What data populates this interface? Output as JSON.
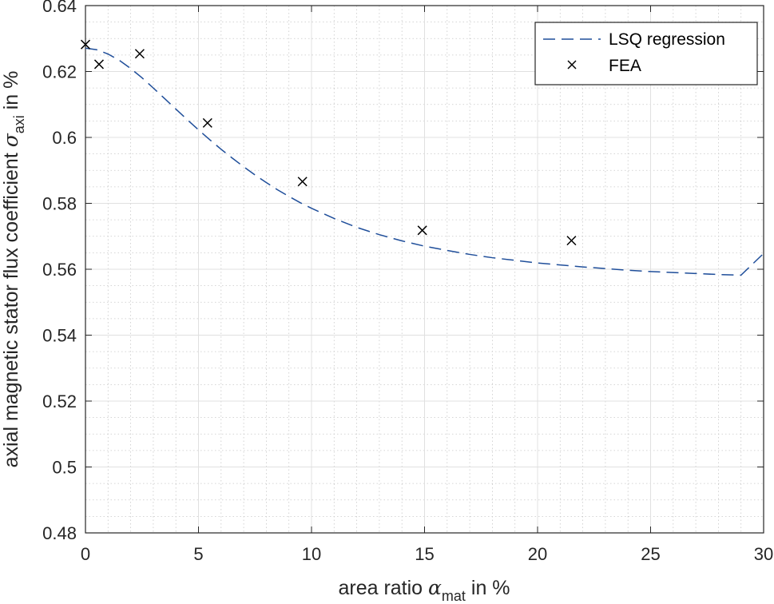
{
  "chart_data": {
    "type": "line",
    "title": "",
    "xlabel": {
      "prefix": "area ratio ",
      "symbol": "α",
      "subscript": "mat",
      "suffix": " in %"
    },
    "ylabel": {
      "prefix": "axial magnetic stator flux coefficient ",
      "symbol": "σ",
      "subscript": "axi",
      "suffix": " in %"
    },
    "xlim": [
      0,
      30
    ],
    "ylim": [
      0.48,
      0.64
    ],
    "xticks": [
      "0",
      "5",
      "10",
      "15",
      "20",
      "25",
      "30"
    ],
    "yticks": [
      "0.48",
      "0.5",
      "0.52",
      "0.54",
      "0.56",
      "0.58",
      "0.6",
      "0.62",
      "0.64"
    ],
    "grid": true,
    "minor_grid": true,
    "legend_position": "top-right",
    "series": [
      {
        "name": "LSQ regression",
        "style": "dashed line",
        "color": "#1f4e9a",
        "x": [
          0,
          0.5,
          1,
          1.5,
          2,
          2.5,
          3,
          3.5,
          4,
          4.5,
          5,
          5.5,
          6,
          6.5,
          7,
          7.5,
          8,
          8.5,
          9,
          9.5,
          10,
          11,
          12,
          13,
          14,
          15,
          16,
          17,
          18,
          19,
          20,
          21,
          22,
          23,
          24,
          25,
          26,
          27,
          28,
          29,
          30
        ],
        "y": [
          0.6271,
          0.6266,
          0.6253,
          0.6234,
          0.6209,
          0.6181,
          0.615,
          0.6118,
          0.6086,
          0.6054,
          0.6023,
          0.5993,
          0.5964,
          0.5937,
          0.5911,
          0.5886,
          0.5863,
          0.5841,
          0.5821,
          0.5802,
          0.5785,
          0.5754,
          0.5727,
          0.5705,
          0.5686,
          0.567,
          0.5657,
          0.5645,
          0.5635,
          0.5627,
          0.5619,
          0.5613,
          0.5607,
          0.5602,
          0.5597,
          0.5593,
          0.559,
          0.5587,
          0.5584,
          0.5582,
          0.5648
        ]
      },
      {
        "name": "FEA",
        "style": "x markers",
        "color": "#000000",
        "x": [
          0,
          0.6,
          2.4,
          5.4,
          9.6,
          14.9,
          21.5
        ],
        "y": [
          0.6282,
          0.6222,
          0.6254,
          0.6044,
          0.5866,
          0.5718,
          0.5687
        ]
      }
    ]
  }
}
